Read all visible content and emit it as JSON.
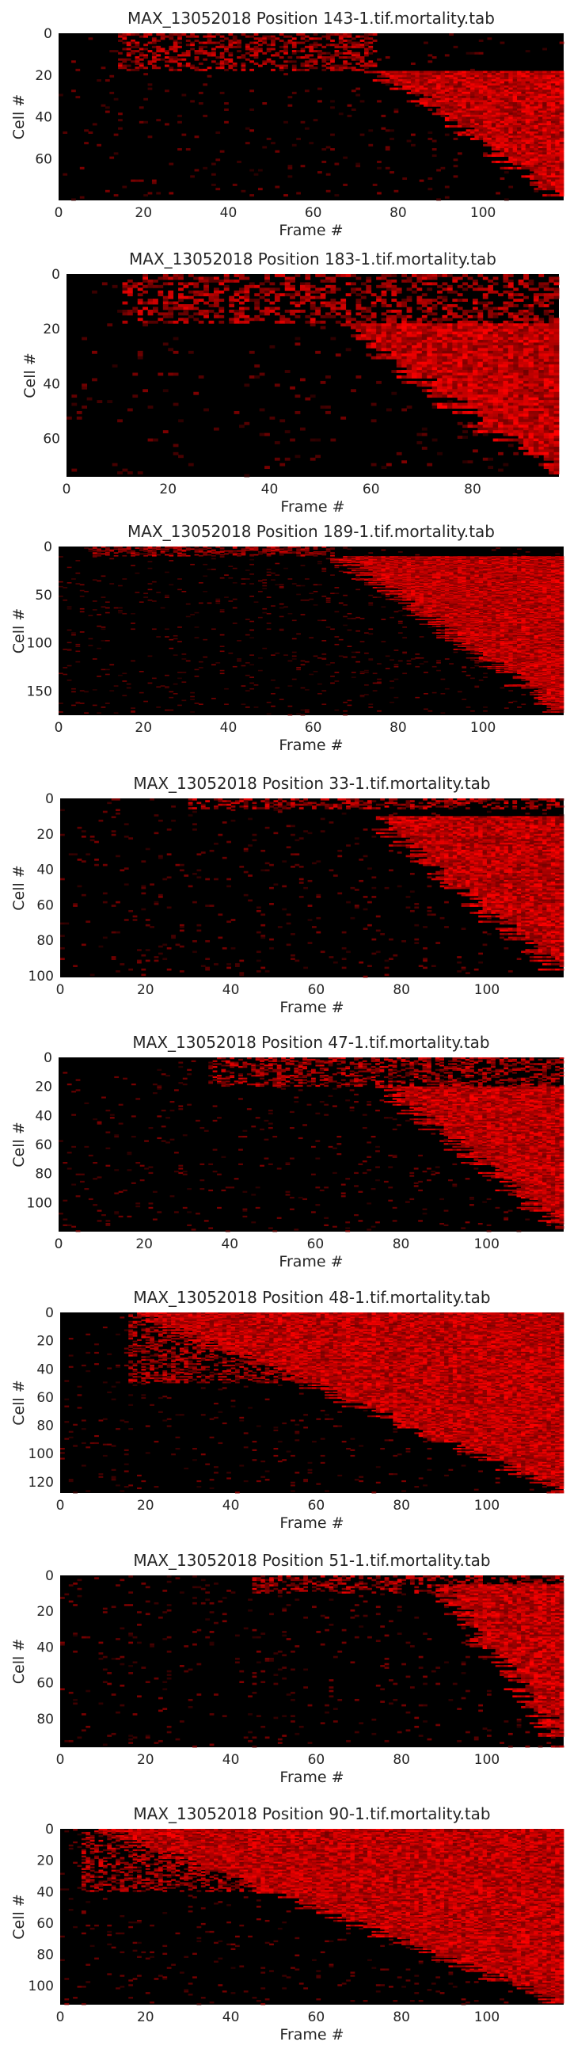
{
  "figure": {
    "colormap": [
      "#000000",
      "#ff0000"
    ]
  },
  "chart_data": [
    {
      "type": "heatmap",
      "title": "MAX_13052018 Position 143-1.tif.mortality.tab",
      "xlabel": "Frame #",
      "ylabel": "Cell #",
      "n_frames": 119,
      "n_cells": 80,
      "xlim": [
        0,
        119
      ],
      "ylim": [
        80,
        0
      ],
      "xticks": [
        0,
        20,
        40,
        60,
        80,
        100
      ],
      "yticks": [
        0,
        20,
        40,
        60
      ],
      "pattern": {
        "onset_start_frame": 75,
        "onset_end_frame": 119,
        "onset_start_cell": 18,
        "onset_end_cell": 80,
        "early_band_cells": [
          0,
          18
        ],
        "early_band_frames": [
          14,
          75
        ],
        "seed": 143
      }
    },
    {
      "type": "heatmap",
      "title": "MAX_13052018 Position 183-1.tif.mortality.tab",
      "xlabel": "Frame #",
      "ylabel": "Cell #",
      "n_frames": 97,
      "n_cells": 74,
      "xlim": [
        0,
        97
      ],
      "ylim": [
        74,
        0
      ],
      "xticks": [
        0,
        20,
        40,
        60,
        80
      ],
      "yticks": [
        0,
        20,
        40,
        60
      ],
      "pattern": {
        "onset_start_frame": 52,
        "onset_end_frame": 97,
        "onset_start_cell": 18,
        "onset_end_cell": 74,
        "early_band_cells": [
          0,
          18
        ],
        "early_band_frames": [
          11,
          97
        ],
        "seed": 183
      }
    },
    {
      "type": "heatmap",
      "title": "MAX_13052018 Position 189-1.tif.mortality.tab",
      "xlabel": "Frame #",
      "ylabel": "Cell #",
      "n_frames": 119,
      "n_cells": 175,
      "xlim": [
        0,
        119
      ],
      "ylim": [
        175,
        0
      ],
      "xticks": [
        0,
        20,
        40,
        60,
        80,
        100
      ],
      "yticks": [
        0,
        50,
        100,
        150
      ],
      "pattern": {
        "onset_start_frame": 65,
        "onset_end_frame": 119,
        "onset_start_cell": 10,
        "onset_end_cell": 175,
        "early_band_cells": [
          0,
          10
        ],
        "early_band_frames": [
          8,
          65
        ],
        "seed": 189
      }
    },
    {
      "type": "heatmap",
      "title": "MAX_13052018 Position 33-1.tif.mortality.tab",
      "xlabel": "Frame #",
      "ylabel": "Cell #",
      "n_frames": 118,
      "n_cells": 101,
      "xlim": [
        0,
        118
      ],
      "ylim": [
        101,
        0
      ],
      "xticks": [
        0,
        20,
        40,
        60,
        80,
        100
      ],
      "yticks": [
        0,
        20,
        40,
        60,
        80,
        100
      ],
      "pattern": {
        "onset_start_frame": 72,
        "onset_end_frame": 118,
        "onset_start_cell": 10,
        "onset_end_cell": 101,
        "early_band_cells": [
          0,
          6
        ],
        "early_band_frames": [
          30,
          118
        ],
        "seed": 33
      }
    },
    {
      "type": "heatmap",
      "title": "MAX_13052018 Position 47-1.tif.mortality.tab",
      "xlabel": "Frame #",
      "ylabel": "Cell #",
      "n_frames": 118,
      "n_cells": 120,
      "xlim": [
        0,
        118
      ],
      "ylim": [
        120,
        0
      ],
      "xticks": [
        0,
        20,
        40,
        60,
        80,
        100
      ],
      "yticks": [
        0,
        20,
        40,
        60,
        80,
        100
      ],
      "pattern": {
        "onset_start_frame": 75,
        "onset_end_frame": 118,
        "onset_start_cell": 20,
        "onset_end_cell": 120,
        "early_band_cells": [
          0,
          20
        ],
        "early_band_frames": [
          35,
          118
        ],
        "seed": 47
      }
    },
    {
      "type": "heatmap",
      "title": "MAX_13052018 Position 48-1.tif.mortality.tab",
      "xlabel": "Frame #",
      "ylabel": "Cell #",
      "n_frames": 118,
      "n_cells": 128,
      "xlim": [
        0,
        118
      ],
      "ylim": [
        128,
        0
      ],
      "xticks": [
        0,
        20,
        40,
        60,
        80,
        100
      ],
      "yticks": [
        0,
        20,
        40,
        60,
        80,
        100,
        120
      ],
      "pattern": {
        "onset_start_frame": 18,
        "onset_end_frame": 118,
        "onset_start_cell": 0,
        "onset_end_cell": 128,
        "early_band_cells": [
          0,
          50
        ],
        "early_band_frames": [
          16,
          118
        ],
        "seed": 48
      }
    },
    {
      "type": "heatmap",
      "title": "MAX_13052018 Position 51-1.tif.mortality.tab",
      "xlabel": "Frame #",
      "ylabel": "Cell #",
      "n_frames": 118,
      "n_cells": 96,
      "xlim": [
        0,
        118
      ],
      "ylim": [
        96,
        0
      ],
      "xticks": [
        0,
        20,
        40,
        60,
        80,
        100
      ],
      "yticks": [
        0,
        20,
        40,
        60,
        80
      ],
      "pattern": {
        "onset_start_frame": 88,
        "onset_end_frame": 118,
        "onset_start_cell": 5,
        "onset_end_cell": 96,
        "early_band_cells": [
          0,
          10
        ],
        "early_band_frames": [
          45,
          118
        ],
        "seed": 51
      }
    },
    {
      "type": "heatmap",
      "title": "MAX_13052018 Position 90-1.tif.mortality.tab",
      "xlabel": "Frame #",
      "ylabel": "Cell #",
      "n_frames": 118,
      "n_cells": 112,
      "xlim": [
        0,
        118
      ],
      "ylim": [
        112,
        0
      ],
      "xticks": [
        0,
        20,
        40,
        60,
        80,
        100
      ],
      "yticks": [
        0,
        20,
        40,
        60,
        80,
        100
      ],
      "pattern": {
        "onset_start_frame": 10,
        "onset_end_frame": 118,
        "onset_start_cell": 0,
        "onset_end_cell": 112,
        "early_band_cells": [
          0,
          40
        ],
        "early_band_frames": [
          5,
          118
        ],
        "seed": 90
      }
    }
  ]
}
